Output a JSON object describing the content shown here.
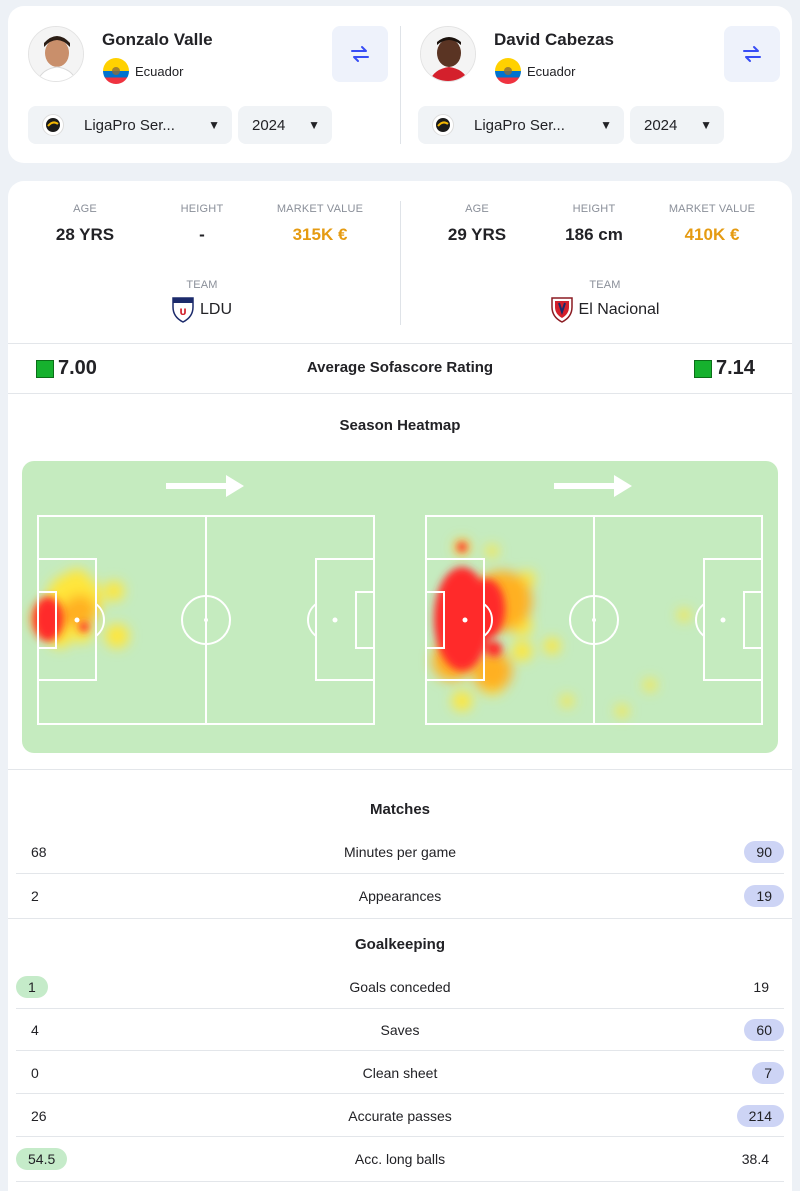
{
  "players": [
    {
      "name": "Gonzalo Valle",
      "country": "Ecuador",
      "league": "LigaPro Ser...",
      "season": "2024",
      "age": "28 YRS",
      "height": "-",
      "market_value": "315K €",
      "team": "LDU",
      "rating": "7.00"
    },
    {
      "name": "David Cabezas",
      "country": "Ecuador",
      "league": "LigaPro Ser...",
      "season": "2024",
      "age": "29 YRS",
      "height": "186 cm",
      "market_value": "410K €",
      "team": "El Nacional",
      "rating": "7.14"
    }
  ],
  "labels": {
    "age": "AGE",
    "height": "HEIGHT",
    "market_value": "MARKET VALUE",
    "team": "TEAM",
    "rating_title": "Average Sofascore Rating",
    "heatmap_title": "Season Heatmap"
  },
  "sections": [
    {
      "title": "Matches",
      "rows": [
        {
          "label": "Minutes per game",
          "left": "68",
          "right": "90",
          "highlight": "right"
        },
        {
          "label": "Appearances",
          "left": "2",
          "right": "19",
          "highlight": "right"
        }
      ]
    },
    {
      "title": "Goalkeeping",
      "rows": [
        {
          "label": "Goals conceded",
          "left": "1",
          "right": "19",
          "highlight": "left"
        },
        {
          "label": "Saves",
          "left": "4",
          "right": "60",
          "highlight": "right"
        },
        {
          "label": "Clean sheet",
          "left": "0",
          "right": "7",
          "highlight": "right"
        },
        {
          "label": "Accurate passes",
          "left": "26",
          "right": "214",
          "highlight": "right"
        },
        {
          "label": "Acc. long balls",
          "left": "54.5",
          "right": "38.4",
          "highlight": "left"
        }
      ]
    }
  ],
  "colors": {
    "market_value": "#e59b12",
    "rating_green": "#16b12e",
    "highlight_blue": "#cdd4f5",
    "highlight_green": "#c5ebc9",
    "pitch": "#c5ebbf"
  },
  "icons": [
    "swap-icon",
    "league-logo-icon",
    "ecuador-flag-icon",
    "caret-down-icon",
    "team-crest-icon"
  ]
}
